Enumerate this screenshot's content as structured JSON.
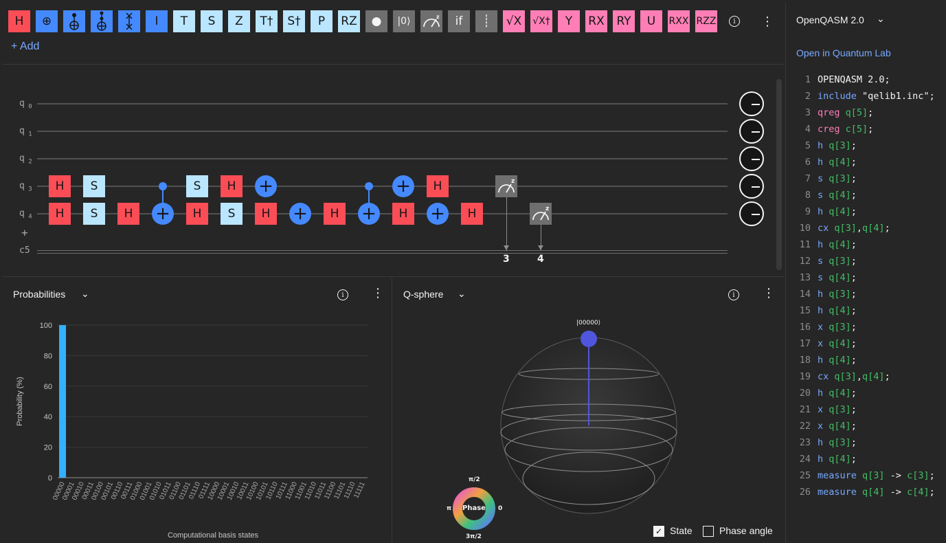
{
  "toolbar": {
    "gates": [
      {
        "label": "H",
        "color": "red"
      },
      {
        "label": "⊕",
        "color": "blue"
      },
      {
        "label": "",
        "color": "blue",
        "icon": "cnot-icon"
      },
      {
        "label": "",
        "color": "blue",
        "icon": "toffoli-icon"
      },
      {
        "label": "",
        "color": "blue",
        "icon": "swap-icon"
      },
      {
        "label": "I",
        "color": "blue"
      },
      {
        "label": "T",
        "color": "lblue"
      },
      {
        "label": "S",
        "color": "lblue"
      },
      {
        "label": "Z",
        "color": "lblue"
      },
      {
        "label": "T†",
        "color": "lblue"
      },
      {
        "label": "S†",
        "color": "lblue"
      },
      {
        "label": "P",
        "color": "lblue"
      },
      {
        "label": "RZ",
        "color": "lblue"
      },
      {
        "label": "●",
        "color": "gray"
      },
      {
        "label": "|0⟩",
        "color": "gray"
      },
      {
        "label": "",
        "color": "gray",
        "icon": "measure-icon"
      },
      {
        "label": "if",
        "color": "gray"
      },
      {
        "label": "┊",
        "color": "gray"
      },
      {
        "label": "√X",
        "color": "pink"
      },
      {
        "label": "√X†",
        "color": "pink"
      },
      {
        "label": "Y",
        "color": "pink"
      },
      {
        "label": "RX",
        "color": "pink"
      },
      {
        "label": "RY",
        "color": "pink"
      },
      {
        "label": "U",
        "color": "pink"
      },
      {
        "label": "RXX",
        "color": "pink"
      },
      {
        "label": "RZZ",
        "color": "pink"
      }
    ],
    "add_label": "+ Add"
  },
  "circuit": {
    "qubits": [
      "q",
      "q",
      "q",
      "q",
      "q"
    ],
    "qubit_indices": [
      "0",
      "1",
      "2",
      "3",
      "4"
    ],
    "add_qubit": "+",
    "classical": "c5",
    "measure_targets": [
      "3",
      "4"
    ]
  },
  "probabilities": {
    "title": "Probabilities",
    "ylabel": "Probability (%)",
    "xlabel": "Computational basis states"
  },
  "chart_data": {
    "type": "bar",
    "title": "",
    "xlabel": "Computational basis states",
    "ylabel": "Probability (%)",
    "ylim": [
      0,
      100
    ],
    "yticks": [
      "0",
      "20",
      "40",
      "60",
      "80",
      "100"
    ],
    "categories": [
      "00000",
      "00001",
      "00010",
      "00011",
      "00100",
      "00101",
      "00110",
      "00111",
      "01000",
      "01001",
      "01010",
      "01011",
      "01100",
      "01101",
      "01110",
      "01111",
      "10000",
      "10001",
      "10010",
      "10011",
      "10100",
      "10101",
      "10110",
      "10111",
      "11000",
      "11001",
      "11010",
      "11011",
      "11100",
      "11101",
      "11110",
      "11111"
    ],
    "values": [
      100,
      0,
      0,
      0,
      0,
      0,
      0,
      0,
      0,
      0,
      0,
      0,
      0,
      0,
      0,
      0,
      0,
      0,
      0,
      0,
      0,
      0,
      0,
      0,
      0,
      0,
      0,
      0,
      0,
      0,
      0,
      0
    ]
  },
  "qsphere": {
    "title": "Q-sphere",
    "state_label": "|00000⟩",
    "phase_label": "Phase",
    "phase_top": "π/2",
    "phase_left": "π",
    "phase_right": "0",
    "phase_bottom": "3π/2",
    "state_checkbox": "State",
    "phase_checkbox": "Phase angle"
  },
  "code": {
    "language": "OpenQASM 2.0",
    "open_link": "Open in Quantum Lab",
    "lines": [
      [
        [
          "OPENQASM 2.0;",
          "str"
        ]
      ],
      [
        [
          "include ",
          "blue"
        ],
        [
          "\"qelib1.inc\";",
          "str"
        ]
      ],
      [
        [
          "qreg ",
          "pink"
        ],
        [
          "q[5]",
          "green"
        ],
        [
          ";",
          "str"
        ]
      ],
      [
        [
          "creg ",
          "pink"
        ],
        [
          "c[5]",
          "green"
        ],
        [
          ";",
          "str"
        ]
      ],
      [
        [
          "h ",
          "blue"
        ],
        [
          "q[3]",
          "green"
        ],
        [
          ";",
          "str"
        ]
      ],
      [
        [
          "h ",
          "blue"
        ],
        [
          "q[4]",
          "green"
        ],
        [
          ";",
          "str"
        ]
      ],
      [
        [
          "s ",
          "blue"
        ],
        [
          "q[3]",
          "green"
        ],
        [
          ";",
          "str"
        ]
      ],
      [
        [
          "s ",
          "blue"
        ],
        [
          "q[4]",
          "green"
        ],
        [
          ";",
          "str"
        ]
      ],
      [
        [
          "h ",
          "blue"
        ],
        [
          "q[4]",
          "green"
        ],
        [
          ";",
          "str"
        ]
      ],
      [
        [
          "cx ",
          "blue"
        ],
        [
          "q[3]",
          "green"
        ],
        [
          ",",
          "str"
        ],
        [
          "q[4]",
          "green"
        ],
        [
          ";",
          "str"
        ]
      ],
      [
        [
          "h ",
          "blue"
        ],
        [
          "q[4]",
          "green"
        ],
        [
          ";",
          "str"
        ]
      ],
      [
        [
          "s ",
          "blue"
        ],
        [
          "q[3]",
          "green"
        ],
        [
          ";",
          "str"
        ]
      ],
      [
        [
          "s ",
          "blue"
        ],
        [
          "q[4]",
          "green"
        ],
        [
          ";",
          "str"
        ]
      ],
      [
        [
          "h ",
          "blue"
        ],
        [
          "q[3]",
          "green"
        ],
        [
          ";",
          "str"
        ]
      ],
      [
        [
          "h ",
          "blue"
        ],
        [
          "q[4]",
          "green"
        ],
        [
          ";",
          "str"
        ]
      ],
      [
        [
          "x ",
          "blue"
        ],
        [
          "q[3]",
          "green"
        ],
        [
          ";",
          "str"
        ]
      ],
      [
        [
          "x ",
          "blue"
        ],
        [
          "q[4]",
          "green"
        ],
        [
          ";",
          "str"
        ]
      ],
      [
        [
          "h ",
          "blue"
        ],
        [
          "q[4]",
          "green"
        ],
        [
          ";",
          "str"
        ]
      ],
      [
        [
          "cx ",
          "blue"
        ],
        [
          "q[3]",
          "green"
        ],
        [
          ",",
          "str"
        ],
        [
          "q[4]",
          "green"
        ],
        [
          ";",
          "str"
        ]
      ],
      [
        [
          "h ",
          "blue"
        ],
        [
          "q[4]",
          "green"
        ],
        [
          ";",
          "str"
        ]
      ],
      [
        [
          "x ",
          "blue"
        ],
        [
          "q[3]",
          "green"
        ],
        [
          ";",
          "str"
        ]
      ],
      [
        [
          "x ",
          "blue"
        ],
        [
          "q[4]",
          "green"
        ],
        [
          ";",
          "str"
        ]
      ],
      [
        [
          "h ",
          "blue"
        ],
        [
          "q[3]",
          "green"
        ],
        [
          ";",
          "str"
        ]
      ],
      [
        [
          "h ",
          "blue"
        ],
        [
          "q[4]",
          "green"
        ],
        [
          ";",
          "str"
        ]
      ],
      [
        [
          "measure ",
          "blue"
        ],
        [
          "q[3]",
          "green"
        ],
        [
          " -> ",
          "str"
        ],
        [
          "c[3]",
          "green"
        ],
        [
          ";",
          "str"
        ]
      ],
      [
        [
          "measure ",
          "blue"
        ],
        [
          "q[4]",
          "green"
        ],
        [
          " -> ",
          "str"
        ],
        [
          "c[4]",
          "green"
        ],
        [
          ";",
          "str"
        ]
      ]
    ]
  },
  "colors": {
    "red": "#fa4d56",
    "blue": "#4589ff",
    "lblue": "#bae6ff",
    "gray": "#6f6f6f",
    "pink": "#ff7eb6",
    "bar": "#33b1ff"
  }
}
